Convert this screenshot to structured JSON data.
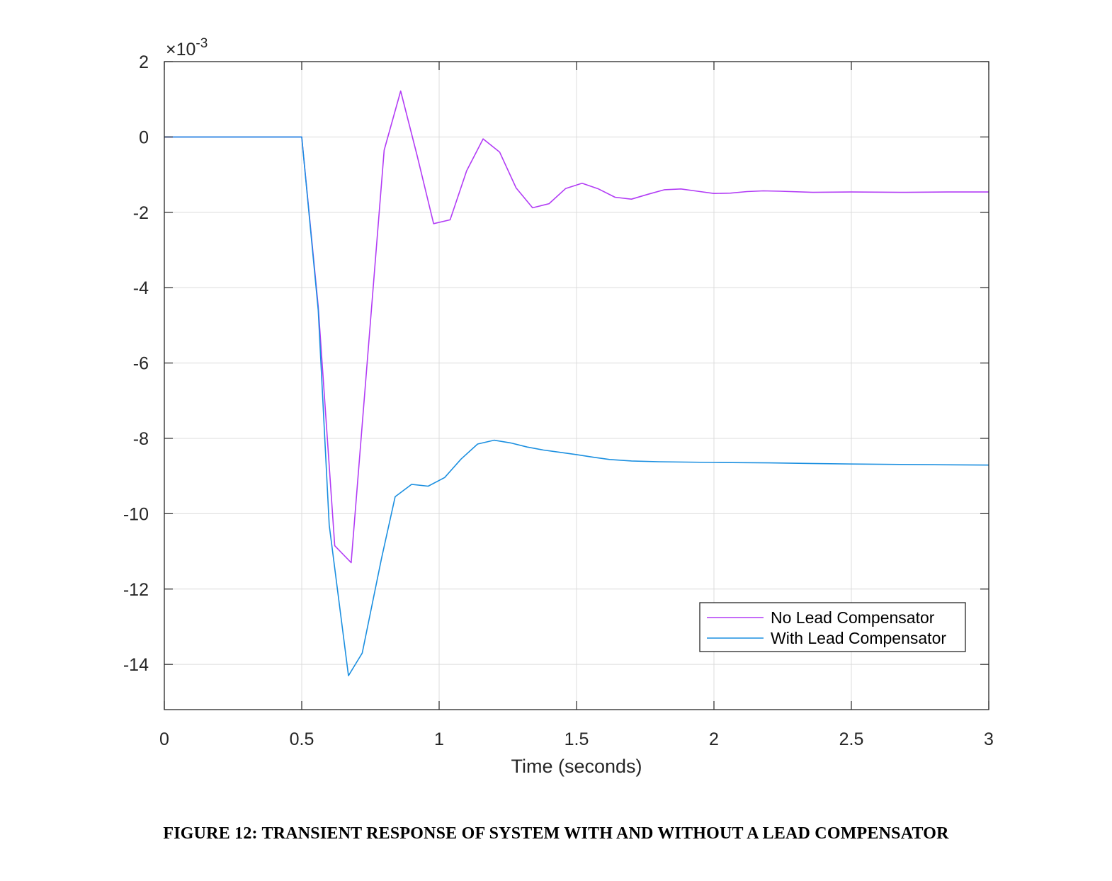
{
  "chart_data": {
    "type": "line",
    "xlabel": "Time (seconds)",
    "ylabel": "",
    "y_exponent_label": "×10",
    "y_exponent_power": "-3",
    "xlim": [
      0,
      3
    ],
    "ylim": [
      -15.2,
      2
    ],
    "xticks": [
      0,
      0.5,
      1,
      1.5,
      2,
      2.5,
      3
    ],
    "xtick_labels": [
      "0",
      "0.5",
      "1",
      "1.5",
      "2",
      "2.5",
      "3"
    ],
    "yticks": [
      2,
      0,
      -2,
      -4,
      -6,
      -8,
      -10,
      -12,
      -14
    ],
    "ytick_labels": [
      "2",
      "0",
      "-2",
      "-4",
      "-6",
      "-8",
      "-10",
      "-12",
      "-14"
    ],
    "grid": true,
    "legend_position": "bottom-right",
    "series": [
      {
        "name": "No Lead Compensator",
        "color": "#b23cf5",
        "x": [
          0,
          0.5,
          0.56,
          0.62,
          0.68,
          0.8,
          0.86,
          0.92,
          0.98,
          1.04,
          1.1,
          1.16,
          1.22,
          1.28,
          1.34,
          1.4,
          1.46,
          1.52,
          1.58,
          1.64,
          1.7,
          1.76,
          1.82,
          1.88,
          1.94,
          2.0,
          2.06,
          2.12,
          2.18,
          2.24,
          2.36,
          2.5,
          2.7,
          2.85,
          3.0
        ],
        "y": [
          0,
          0,
          -4.5,
          -10.85,
          -11.3,
          -0.35,
          1.22,
          -0.5,
          -2.3,
          -2.2,
          -0.9,
          -0.05,
          -0.4,
          -1.35,
          -1.88,
          -1.77,
          -1.37,
          -1.23,
          -1.38,
          -1.6,
          -1.65,
          -1.52,
          -1.4,
          -1.38,
          -1.44,
          -1.5,
          -1.49,
          -1.45,
          -1.43,
          -1.44,
          -1.47,
          -1.46,
          -1.47,
          -1.46,
          -1.46
        ]
      },
      {
        "name": "With Lead Compensator",
        "color": "#1b8fe0",
        "x": [
          0,
          0.5,
          0.56,
          0.6,
          0.67,
          0.72,
          0.79,
          0.84,
          0.9,
          0.96,
          1.02,
          1.08,
          1.14,
          1.2,
          1.26,
          1.32,
          1.38,
          1.44,
          1.5,
          1.56,
          1.62,
          1.7,
          1.8,
          2.0,
          2.2,
          2.5,
          2.8,
          3.0
        ],
        "y": [
          0,
          0,
          -4.6,
          -10.3,
          -14.3,
          -13.7,
          -11.2,
          -9.55,
          -9.22,
          -9.27,
          -9.04,
          -8.55,
          -8.15,
          -8.05,
          -8.12,
          -8.23,
          -8.31,
          -8.37,
          -8.43,
          -8.5,
          -8.56,
          -8.6,
          -8.62,
          -8.64,
          -8.65,
          -8.68,
          -8.7,
          -8.71
        ]
      }
    ]
  },
  "caption": "FIGURE 12: TRANSIENT RESPONSE OF SYSTEM WITH AND WITHOUT A LEAD COMPENSATOR"
}
